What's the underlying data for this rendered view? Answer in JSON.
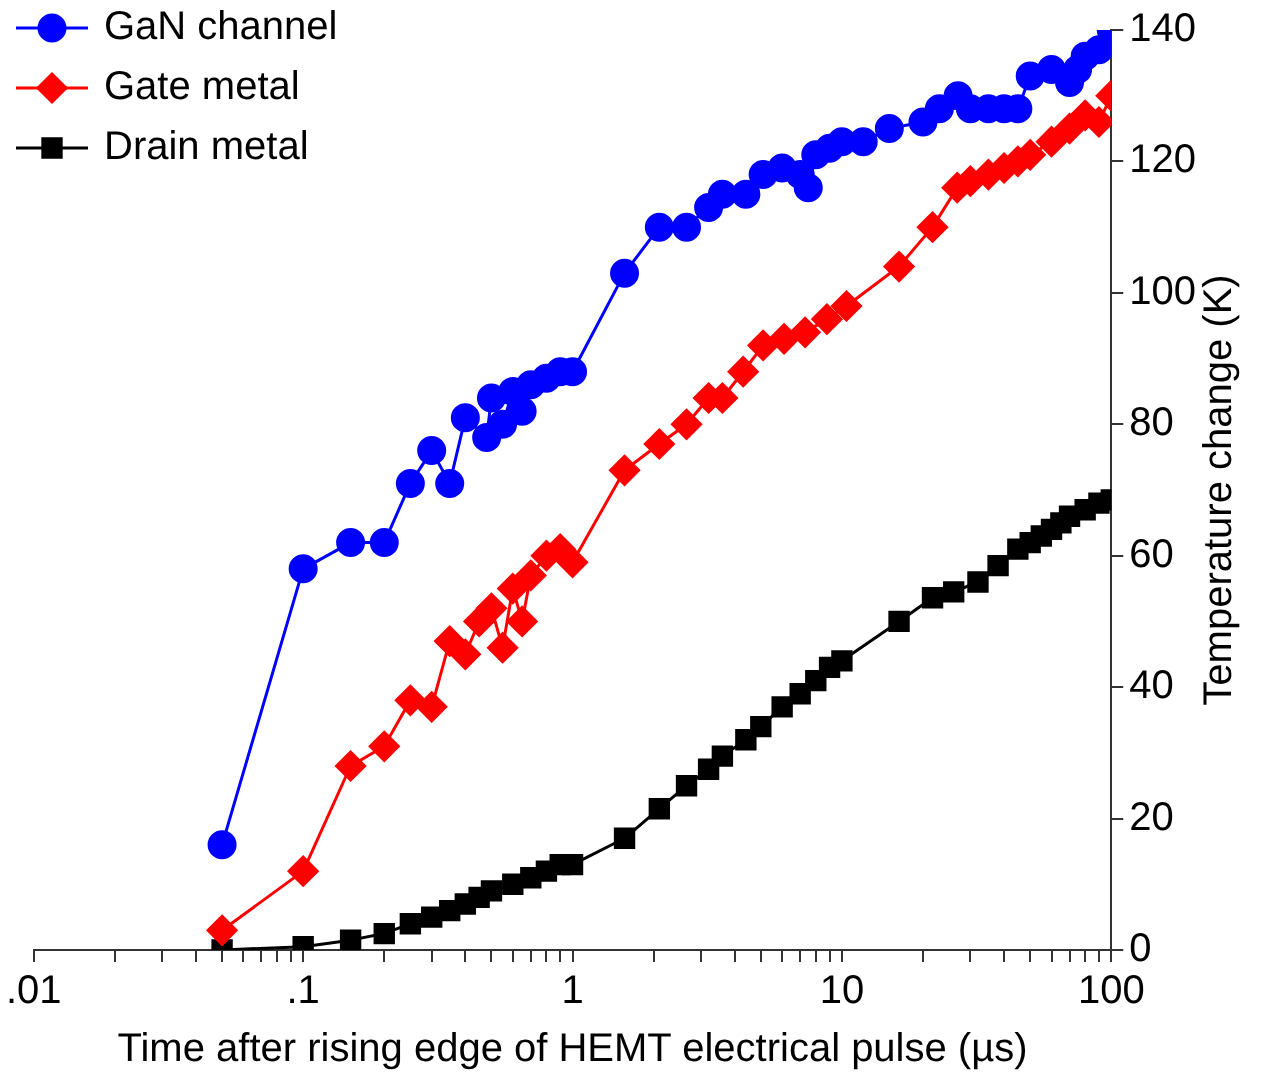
{
  "chart_data": {
    "type": "line",
    "xlabel": "Time after rising edge of HEMT electrical pulse (µs)",
    "ylabel": "Temperature change (K)",
    "log": "x",
    "xlim": [
      0.01,
      100
    ],
    "ylim": [
      0,
      140
    ],
    "xticks": [
      {
        "value": 0.01,
        "label": ".01"
      },
      {
        "value": 0.02,
        "label": null
      },
      {
        "value": 0.03,
        "label": null
      },
      {
        "value": 0.04,
        "label": null
      },
      {
        "value": 0.05,
        "label": null
      },
      {
        "value": 0.06,
        "label": null
      },
      {
        "value": 0.07,
        "label": null
      },
      {
        "value": 0.08,
        "label": null
      },
      {
        "value": 0.09,
        "label": null
      },
      {
        "value": 0.1,
        "label": ".1"
      },
      {
        "value": 0.2,
        "label": null
      },
      {
        "value": 0.3,
        "label": null
      },
      {
        "value": 0.4,
        "label": null
      },
      {
        "value": 0.5,
        "label": null
      },
      {
        "value": 0.6,
        "label": null
      },
      {
        "value": 0.7,
        "label": null
      },
      {
        "value": 0.8,
        "label": null
      },
      {
        "value": 0.9,
        "label": null
      },
      1,
      {
        "value": 2,
        "label": null
      },
      {
        "value": 3,
        "label": null
      },
      {
        "value": 4,
        "label": null
      },
      {
        "value": 5,
        "label": null
      },
      {
        "value": 6,
        "label": null
      },
      {
        "value": 7,
        "label": null
      },
      {
        "value": 8,
        "label": null
      },
      {
        "value": 9,
        "label": null
      },
      10,
      {
        "value": 20,
        "label": null
      },
      {
        "value": 30,
        "label": null
      },
      {
        "value": 40,
        "label": null
      },
      {
        "value": 50,
        "label": null
      },
      {
        "value": 60,
        "label": null
      },
      {
        "value": 70,
        "label": null
      },
      {
        "value": 80,
        "label": null
      },
      {
        "value": 90,
        "label": null
      },
      100
    ],
    "yticks": [
      0,
      20,
      40,
      60,
      80,
      100,
      120,
      140
    ],
    "grid": false,
    "legend": "top left",
    "line_style": "solid",
    "series": [
      {
        "name": "GaN channel",
        "color": "#0000ff",
        "marker": "circle",
        "x": [
          0.05,
          0.1,
          0.15,
          0.2,
          0.25,
          0.3,
          0.35,
          0.4,
          0.48,
          0.5,
          0.55,
          0.6,
          0.65,
          0.7,
          0.8,
          0.9,
          1.0,
          1.56,
          2.1,
          2.65,
          3.2,
          3.6,
          4.4,
          5.1,
          6,
          7,
          7.5,
          8,
          9,
          10,
          12,
          15,
          20,
          23,
          27,
          30,
          35,
          40,
          45,
          50,
          60,
          70,
          75,
          80,
          90,
          100
        ],
        "values": [
          16,
          58,
          62,
          62,
          71,
          76,
          71,
          81,
          78,
          84,
          80,
          85,
          82,
          86,
          87,
          88,
          88,
          103,
          110,
          110,
          113,
          115,
          115,
          118,
          119,
          118,
          116,
          121,
          122,
          123,
          123,
          125,
          126,
          128,
          130,
          128,
          128,
          128,
          128,
          133,
          134,
          132,
          134,
          136,
          137,
          140
        ]
      },
      {
        "name": "Gate metal",
        "color": "#ff0000",
        "marker": "diamond",
        "x": [
          0.05,
          0.1,
          0.15,
          0.2,
          0.25,
          0.3,
          0.35,
          0.4,
          0.45,
          0.5,
          0.55,
          0.6,
          0.65,
          0.7,
          0.8,
          0.9,
          1.0,
          1.56,
          2.1,
          2.65,
          3.2,
          3.6,
          4.3,
          5.1,
          6.1,
          7.3,
          8.8,
          10.4,
          16.3,
          21.7,
          26.8,
          30,
          35,
          40,
          45,
          50,
          60,
          70,
          80,
          90,
          100
        ],
        "values": [
          3,
          12,
          28,
          31,
          38,
          37,
          47,
          45,
          50,
          52,
          46,
          55,
          50,
          57,
          60,
          61,
          59,
          73,
          77,
          80,
          84,
          84,
          88,
          92,
          93,
          94,
          96,
          98,
          104,
          110,
          116,
          117,
          118,
          119,
          120,
          121,
          123,
          125,
          127,
          126,
          130
        ]
      },
      {
        "name": "Drain metal",
        "color": "#000000",
        "marker": "square",
        "x": [
          0.05,
          0.1,
          0.15,
          0.2,
          0.25,
          0.3,
          0.35,
          0.4,
          0.45,
          0.5,
          0.6,
          0.7,
          0.8,
          0.9,
          1.0,
          1.56,
          2.1,
          2.65,
          3.2,
          3.6,
          4.4,
          5,
          6,
          7,
          8,
          9,
          10,
          16.3,
          21.7,
          26,
          32,
          38,
          45,
          50,
          55,
          60,
          65,
          70,
          80,
          90,
          100
        ],
        "values": [
          0,
          0.5,
          1.5,
          2.5,
          4,
          5,
          6,
          7,
          8,
          9,
          10,
          11,
          12,
          13,
          13,
          17,
          21.5,
          25,
          27.5,
          29.5,
          32,
          34,
          37,
          39,
          41,
          43,
          44,
          50,
          53.6,
          54.5,
          56,
          58.5,
          61,
          62,
          63,
          64,
          65,
          66,
          67,
          68,
          68.5
        ]
      }
    ]
  }
}
